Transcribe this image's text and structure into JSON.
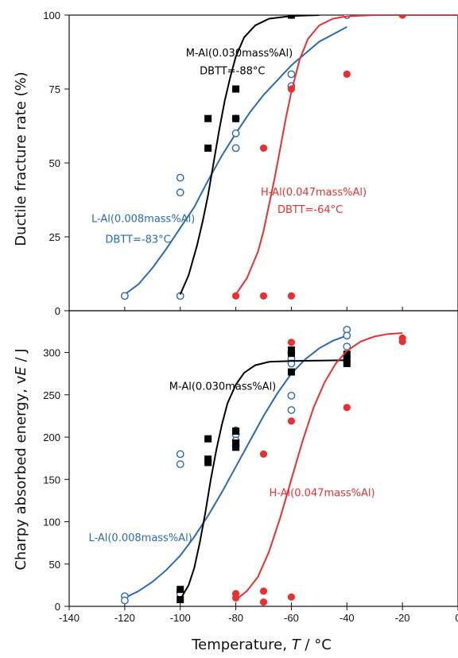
{
  "chart_data": [
    {
      "type": "scatter",
      "panel": "top",
      "ylabel": "Ductile fracture rate (%)",
      "xlim": [
        -140,
        0
      ],
      "ylim": [
        0,
        100
      ],
      "yticks": [
        0,
        25,
        50,
        75,
        100
      ],
      "grid": false,
      "series": [
        {
          "label": "L-Al(0.008mass%Al)",
          "color": "#2a6ab4",
          "marker": "open-circle",
          "points": [
            [
              -120,
              5
            ],
            [
              -100,
              45
            ],
            [
              -100,
              40
            ],
            [
              -100,
              5
            ],
            [
              -80,
              55
            ],
            [
              -80,
              60
            ],
            [
              -80,
              65
            ],
            [
              -60,
              100
            ],
            [
              -60,
              80
            ],
            [
              -60,
              76
            ],
            [
              -40,
              100
            ]
          ],
          "curve": [
            [
              -120,
              5.5
            ],
            [
              -115,
              9
            ],
            [
              -110,
              14.5
            ],
            [
              -105,
              21
            ],
            [
              -100,
              28
            ],
            [
              -95,
              35
            ],
            [
              -90,
              44
            ],
            [
              -85,
              52.5
            ],
            [
              -80,
              60
            ],
            [
              -75,
              67
            ],
            [
              -70,
              73
            ],
            [
              -65,
              78
            ],
            [
              -60,
              83
            ],
            [
              -55,
              87
            ],
            [
              -50,
              91
            ],
            [
              -45,
              93.5
            ],
            [
              -40,
              96
            ]
          ]
        },
        {
          "label": "M-Al(0.030mass%Al)",
          "color": "#000000",
          "marker": "filled-square",
          "points": [
            [
              -90,
              65
            ],
            [
              -90,
              55
            ],
            [
              -80,
              75
            ],
            [
              -80,
              65
            ],
            [
              -60,
              100
            ]
          ],
          "curve": [
            [
              -100,
              5.5
            ],
            [
              -97,
              12
            ],
            [
              -94,
              22
            ],
            [
              -92,
              30
            ],
            [
              -90,
              39
            ],
            [
              -88,
              50
            ],
            [
              -86,
              61
            ],
            [
              -84,
              71
            ],
            [
              -82,
              79
            ],
            [
              -80,
              86
            ],
            [
              -77,
              92.5
            ],
            [
              -73,
              96.5
            ],
            [
              -68,
              98.8
            ],
            [
              -60,
              99.7
            ],
            [
              -50,
              100
            ]
          ]
        },
        {
          "label": "H-Al(0.047mass%Al)",
          "color": "#e83030",
          "marker": "filled-circle",
          "points": [
            [
              -80,
              5
            ],
            [
              -70,
              55
            ],
            [
              -70,
              5
            ],
            [
              -60,
              75
            ],
            [
              -60,
              5
            ],
            [
              -40,
              80
            ],
            [
              -20,
              100
            ]
          ],
          "curve": [
            [
              -80,
              5.5
            ],
            [
              -76,
              11
            ],
            [
              -72,
              20
            ],
            [
              -70,
              27
            ],
            [
              -68,
              36
            ],
            [
              -66,
              45
            ],
            [
              -64,
              55
            ],
            [
              -62,
              65
            ],
            [
              -60,
              74
            ],
            [
              -57,
              85
            ],
            [
              -54,
              92
            ],
            [
              -50,
              96.5
            ],
            [
              -45,
              98.8
            ],
            [
              -40,
              99.6
            ],
            [
              -30,
              100
            ],
            [
              -20,
              100
            ],
            [
              0,
              100
            ]
          ]
        }
      ],
      "annotations": [
        {
          "text": "M-Al(0.030mass%Al)",
          "color": "#000000",
          "x": -98,
          "y": 86
        },
        {
          "text": "DBTT=-88°C",
          "color": "#000000",
          "x": -93,
          "y": 80
        },
        {
          "text": "H-Al(0.047mass%Al)",
          "color": "#e83030",
          "x": -71,
          "y": 39
        },
        {
          "text": "DBTT=-64°C",
          "color": "#e83030",
          "x": -65,
          "y": 33
        },
        {
          "text": "L-Al(0.008mass%Al)",
          "color": "#2a6ab4",
          "x": -132,
          "y": 30
        },
        {
          "text": "DBTT=-83°C",
          "color": "#2a6ab4",
          "x": -127,
          "y": 23
        }
      ]
    },
    {
      "type": "scatter",
      "panel": "bottom",
      "ylabel": "Charpy absorbed energy, vE / J",
      "xlabel": "Temperature, T / °C",
      "xlim": [
        -140,
        0
      ],
      "ylim": [
        0,
        340
      ],
      "xticks": [
        -140,
        -120,
        -100,
        -80,
        -60,
        -40,
        -20,
        0
      ],
      "yticks": [
        0,
        50,
        100,
        150,
        200,
        250,
        300
      ],
      "grid": false,
      "series": [
        {
          "label": "L-Al(0.008mass%Al)",
          "color": "#2a6ab4",
          "marker": "open-circle",
          "points": [
            [
              -120,
              12
            ],
            [
              -120,
              7
            ],
            [
              -100,
              180
            ],
            [
              -100,
              168
            ],
            [
              -100,
              17
            ],
            [
              -100,
              15
            ],
            [
              -80,
              208
            ],
            [
              -80,
              203
            ],
            [
              -80,
              196
            ],
            [
              -80,
              190
            ],
            [
              -60,
              300
            ],
            [
              -60,
              293
            ],
            [
              -60,
              287
            ],
            [
              -60,
              249
            ],
            [
              -60,
              232
            ],
            [
              -40,
              327
            ],
            [
              -40,
              320
            ],
            [
              -40,
              307
            ]
          ],
          "curve": [
            [
              -120,
              10
            ],
            [
              -115,
              18
            ],
            [
              -110,
              29
            ],
            [
              -105,
              43
            ],
            [
              -100,
              60
            ],
            [
              -95,
              82
            ],
            [
              -90,
              107
            ],
            [
              -85,
              135
            ],
            [
              -80,
              165
            ],
            [
              -75,
              195
            ],
            [
              -70,
              225
            ],
            [
              -65,
              252
            ],
            [
              -60,
              275
            ],
            [
              -55,
              292
            ],
            [
              -50,
              305
            ],
            [
              -45,
              314
            ],
            [
              -40,
              320
            ]
          ]
        },
        {
          "label": "M-Al(0.030mass%Al)",
          "color": "#000000",
          "marker": "filled-square",
          "points": [
            [
              -100,
              20
            ],
            [
              -100,
              8
            ],
            [
              -90,
              198
            ],
            [
              -90,
              174
            ],
            [
              -90,
              170
            ],
            [
              -80,
              207
            ],
            [
              -80,
              193
            ],
            [
              -80,
              188
            ],
            [
              -60,
              303
            ],
            [
              -60,
              299
            ],
            [
              -60,
              277
            ],
            [
              -40,
              298
            ],
            [
              -40,
              292
            ],
            [
              -40,
              287
            ]
          ],
          "curve": [
            [
              -100,
              8
            ],
            [
              -97,
              25
            ],
            [
              -95,
              45
            ],
            [
              -93,
              75
            ],
            [
              -91,
              110
            ],
            [
              -89,
              150
            ],
            [
              -87,
              185
            ],
            [
              -85,
              215
            ],
            [
              -83,
              240
            ],
            [
              -80,
              262
            ],
            [
              -77,
              276
            ],
            [
              -73,
              285
            ],
            [
              -68,
              289
            ],
            [
              -60,
              290
            ],
            [
              -50,
              290.5
            ],
            [
              -40,
              291
            ]
          ]
        },
        {
          "label": "H-Al(0.047mass%Al)",
          "color": "#e83030",
          "marker": "filled-circle",
          "points": [
            [
              -80,
              15
            ],
            [
              -80,
              10
            ],
            [
              -70,
              180
            ],
            [
              -70,
              18
            ],
            [
              -70,
              5
            ],
            [
              -60,
              312
            ],
            [
              -60,
              219
            ],
            [
              -60,
              11
            ],
            [
              -40,
              235
            ],
            [
              -20,
              317
            ],
            [
              -20,
              313
            ]
          ],
          "curve": [
            [
              -80,
              8
            ],
            [
              -76,
              18
            ],
            [
              -72,
              35
            ],
            [
              -68,
              65
            ],
            [
              -64,
              105
            ],
            [
              -60,
              150
            ],
            [
              -56,
              195
            ],
            [
              -52,
              235
            ],
            [
              -48,
              265
            ],
            [
              -44,
              287
            ],
            [
              -40,
              302
            ],
            [
              -35,
              313
            ],
            [
              -30,
              319
            ],
            [
              -25,
              322
            ],
            [
              -20,
              323
            ]
          ]
        }
      ],
      "annotations": [
        {
          "text": "M-Al(0.030mass%Al)",
          "color": "#000000",
          "x": -104,
          "y": 256
        },
        {
          "text": "H-Al(0.047mass%Al)",
          "color": "#e83030",
          "x": -68,
          "y": 130
        },
        {
          "text": "L-Al(0.008mass%Al)",
          "color": "#2a6ab4",
          "x": -133,
          "y": 77
        }
      ]
    }
  ],
  "labels": {
    "top_ylabel": "Ductile fracture rate (%)",
    "bottom_ylabel_prefix": "Charpy absorbed energy, v",
    "bottom_ylabel_italic": "E",
    "bottom_ylabel_suffix": " / J",
    "xlabel_prefix": "Temperature, ",
    "xlabel_italic": "T",
    "xlabel_suffix": " / °C"
  }
}
